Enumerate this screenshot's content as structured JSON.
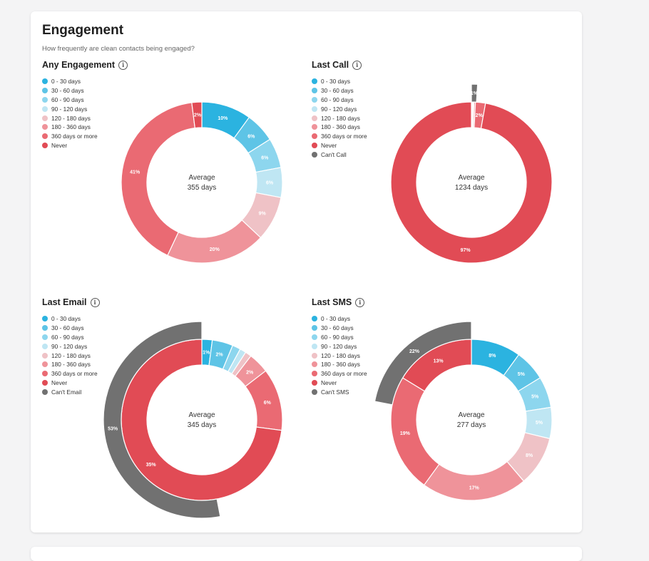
{
  "header": {
    "title": "Engagement",
    "subtitle": "How frequently are clean contacts being engaged?"
  },
  "info_glyph": "i",
  "colors": {
    "0 - 30 days": "#2bb3e0",
    "30 - 60 days": "#5ec4e6",
    "60 - 90 days": "#8dd6ee",
    "90 - 120 days": "#bfe6f3",
    "120 - 180 days": "#efc2c6",
    "180 - 360 days": "#ef939a",
    "360 days or more": "#ea6a73",
    "Never": "#e14b55",
    "Can't Call": "#717171",
    "Can't Email": "#717171",
    "Can't SMS": "#717171"
  },
  "chart_data": [
    {
      "type": "pie",
      "title": "Any Engagement",
      "legend": [
        "0 - 30 days",
        "30 - 60 days",
        "60 - 90 days",
        "90 - 120 days",
        "120 - 180 days",
        "180 - 360 days",
        "360 days or more",
        "Never"
      ],
      "center_label": "Average",
      "center_value": "355 days",
      "rings": [
        {
          "slices": [
            {
              "category": "0 - 30 days",
              "value": 10,
              "label": "10%"
            },
            {
              "category": "30 - 60 days",
              "value": 6,
              "label": "6%"
            },
            {
              "category": "60 - 90 days",
              "value": 6,
              "label": "6%"
            },
            {
              "category": "90 - 120 days",
              "value": 6,
              "label": "6%"
            },
            {
              "category": "120 - 180 days",
              "value": 9,
              "label": "9%"
            },
            {
              "category": "180 - 360 days",
              "value": 20,
              "label": "20%"
            },
            {
              "category": "360 days or more",
              "value": 41,
              "label": "41%"
            },
            {
              "category": "Never",
              "value": 2,
              "label": "2%"
            }
          ]
        }
      ]
    },
    {
      "type": "pie",
      "title": "Last Call",
      "legend": [
        "0 - 30 days",
        "30 - 60 days",
        "60 - 90 days",
        "90 - 120 days",
        "120 - 180 days",
        "180 - 360 days",
        "360 days or more",
        "Never",
        "Can't Call"
      ],
      "center_label": "Average",
      "center_value": "1234 days",
      "rings": [
        {
          "slices": [
            {
              "category": "0 - 30 days",
              "value": 0.1,
              "label": ""
            },
            {
              "category": "30 - 60 days",
              "value": 0.1,
              "label": ""
            },
            {
              "category": "60 - 90 days",
              "value": 0.1,
              "label": ""
            },
            {
              "category": "90 - 120 days",
              "value": 0.1,
              "label": ""
            },
            {
              "category": "120 - 180 days",
              "value": 0.1,
              "label": ""
            },
            {
              "category": "180 - 360 days",
              "value": 0.3,
              "label": ""
            },
            {
              "category": "360 days or more",
              "value": 2,
              "label": "2%"
            },
            {
              "category": "Never",
              "value": 97,
              "label": "97%"
            }
          ]
        },
        {
          "slices": [
            {
              "category": "Can't Call",
              "value": 1,
              "label": "1%"
            },
            {
              "category": "gap",
              "value": 99,
              "label": ""
            }
          ]
        }
      ]
    },
    {
      "type": "pie",
      "title": "Last Email",
      "legend": [
        "0 - 30 days",
        "30 - 60 days",
        "60 - 90 days",
        "90 - 120 days",
        "120 - 180 days",
        "180 - 360 days",
        "360 days or more",
        "Never",
        "Can't Email"
      ],
      "center_label": "Average",
      "center_value": "345 days",
      "rings": [
        {
          "slices": [
            {
              "category": "0 - 30 days",
              "value": 1,
              "label": "1%"
            },
            {
              "category": "30 - 60 days",
              "value": 2,
              "label": "2%"
            },
            {
              "category": "60 - 90 days",
              "value": 0.8,
              "label": ""
            },
            {
              "category": "90 - 120 days",
              "value": 0.6,
              "label": ""
            },
            {
              "category": "120 - 180 days",
              "value": 0.6,
              "label": ""
            },
            {
              "category": "180 - 360 days",
              "value": 2,
              "label": "2%"
            },
            {
              "category": "360 days or more",
              "value": 6,
              "label": "6%"
            },
            {
              "category": "Never",
              "value": 35,
              "label": "35%"
            }
          ]
        },
        {
          "slices": [
            {
              "category": "gap",
              "value": 47,
              "label": ""
            },
            {
              "category": "Can't Email",
              "value": 53,
              "label": "53%"
            }
          ]
        }
      ]
    },
    {
      "type": "pie",
      "title": "Last SMS",
      "legend": [
        "0 - 30 days",
        "30 - 60 days",
        "60 - 90 days",
        "90 - 120 days",
        "120 - 180 days",
        "180 - 360 days",
        "360 days or more",
        "Never",
        "Can't SMS"
      ],
      "center_label": "Average",
      "center_value": "277 days",
      "rings": [
        {
          "slices": [
            {
              "category": "0 - 30 days",
              "value": 8,
              "label": "8%"
            },
            {
              "category": "30 - 60 days",
              "value": 5,
              "label": "5%"
            },
            {
              "category": "60 - 90 days",
              "value": 5,
              "label": "5%"
            },
            {
              "category": "90 - 120 days",
              "value": 5,
              "label": "5%"
            },
            {
              "category": "120 - 180 days",
              "value": 8,
              "label": "8%"
            },
            {
              "category": "180 - 360 days",
              "value": 17,
              "label": "17%"
            },
            {
              "category": "360 days or more",
              "value": 19,
              "label": "19%"
            },
            {
              "category": "Never",
              "value": 13,
              "label": "13%"
            }
          ]
        },
        {
          "slices": [
            {
              "category": "gap",
              "value": 78,
              "label": ""
            },
            {
              "category": "Can't SMS",
              "value": 22,
              "label": "22%"
            }
          ]
        }
      ]
    }
  ]
}
